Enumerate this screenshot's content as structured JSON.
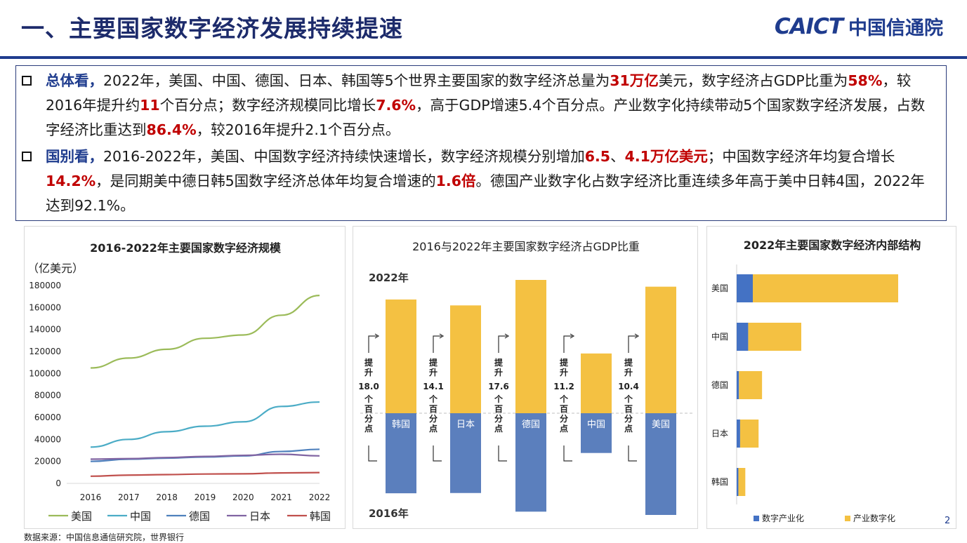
{
  "header": {
    "title": "一、主要国家数字经济发展持续提速",
    "logo_en": "CAICT",
    "logo_cn": "中国信通院"
  },
  "summary": {
    "p1": {
      "head": "总体看，",
      "t1": "2022年，美国、中国、德国、日本、韩国等5个世界主要国家的数字经济总量为",
      "h1": "31万亿",
      "t2": "美元，数字经济占GDP比重为",
      "h2": "58%",
      "t3": "，较2016年提升约",
      "h3": "11",
      "t4": "个百分点；数字经济规模同比增长",
      "h4": "7.6%",
      "t5": "，高于GDP增速5.4个百分点。产业数字化持续带动5个国家数字经济发展，占数字经济比重达到",
      "h5": "86.4%",
      "t6": "，较2016年提升2.1个百分点。"
    },
    "p2": {
      "head": "国别看，",
      "t1": "2016-2022年，美国、中国数字经济持续快速增长，数字经济规模分别增加",
      "h1": "6.5",
      "t2": "、",
      "h2": "4.1万亿美元",
      "t3": "；中国数字经济年均复合增长",
      "h3": "14.2%",
      "t4": "，是同期美中德日韩5国数字经济总体年均复合增速的",
      "h4": "1.6倍",
      "t5": "。德国产业数字化占数字经济比重连续多年高于美中日韩4国，2022年达到92.1%。"
    }
  },
  "chart_data": [
    {
      "type": "line",
      "title": "2016-2022年主要国家数字经济规模",
      "ylabel": "（亿美元）",
      "x": [
        "2016",
        "2017",
        "2018",
        "2019",
        "2020",
        "2021",
        "2022"
      ],
      "ylim": [
        0,
        180000
      ],
      "yticks": [
        "0",
        "20000",
        "40000",
        "60000",
        "80000",
        "100000",
        "120000",
        "140000",
        "160000",
        "180000"
      ],
      "series": [
        {
          "name": "美国",
          "color": "#9bbb59",
          "values": [
            105000,
            114000,
            122000,
            132000,
            135000,
            153000,
            171000
          ]
        },
        {
          "name": "中国",
          "color": "#4bacc6",
          "values": [
            33000,
            40000,
            47000,
            52000,
            56000,
            70000,
            74000
          ]
        },
        {
          "name": "德国",
          "color": "#4f81bd",
          "values": [
            20000,
            22000,
            23000,
            24000,
            25000,
            29000,
            31000
          ]
        },
        {
          "name": "日本",
          "color": "#8064a2",
          "values": [
            22000,
            22500,
            23500,
            24500,
            25500,
            26500,
            25000
          ]
        },
        {
          "name": "韩国",
          "color": "#c0504d",
          "values": [
            6500,
            7500,
            8000,
            8500,
            8700,
            9500,
            9800
          ]
        }
      ]
    },
    {
      "type": "bar",
      "title": "2016与2022年主要国家数字经济占GDP比重",
      "label_top": "2022年",
      "label_bottom": "2016年",
      "categories": [
        "韩国",
        "日本",
        "德国",
        "中国",
        "美国"
      ],
      "series": [
        {
          "name": "2022",
          "color": "#f4c142",
          "values": [
            79.0,
            74.9,
            92.6,
            41.5,
            87.9
          ]
        },
        {
          "name": "2016",
          "color": "#5b7fbd",
          "values": [
            61.0,
            60.8,
            75.0,
            30.3,
            77.5
          ]
        }
      ],
      "annotations": [
        {
          "a": "提",
          "b": "升",
          "num": "18.0",
          "c": "个",
          "d": "百",
          "e": "分",
          "f": "点"
        },
        {
          "a": "提",
          "b": "升",
          "num": "14.1",
          "c": "个",
          "d": "百",
          "e": "分",
          "f": "点"
        },
        {
          "a": "提",
          "b": "升",
          "num": "17.6",
          "c": "个",
          "d": "百",
          "e": "分",
          "f": "点"
        },
        {
          "a": "提",
          "b": "升",
          "num": "11.2",
          "c": "个",
          "d": "百",
          "e": "分",
          "f": "点"
        },
        {
          "a": "提",
          "b": "升",
          "num": "10.4",
          "c": "个",
          "d": "百",
          "e": "分",
          "f": "点"
        }
      ]
    },
    {
      "type": "bar",
      "orientation": "horizontal-stacked",
      "title": "2022年主要国家数字经济内部结构",
      "categories": [
        "美国",
        "中国",
        "德国",
        "日本",
        "韩国"
      ],
      "series": [
        {
          "name": "数字产业化",
          "color": "#4472c4",
          "values": [
            1.4,
            1.0,
            0.2,
            0.3,
            0.15
          ]
        },
        {
          "name": "产业数字化",
          "color": "#f4c142",
          "values": [
            12.6,
            4.6,
            2.0,
            1.6,
            0.6
          ]
        }
      ]
    }
  ],
  "footer": {
    "source": "数据来源：中国信息通信研究院，世界银行",
    "page": "2"
  }
}
